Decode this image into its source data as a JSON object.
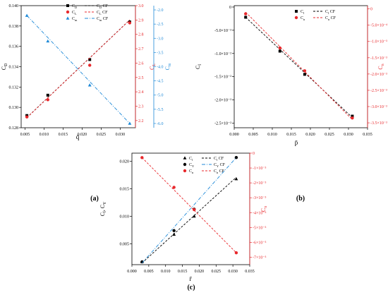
{
  "colors": {
    "black": "#000000",
    "red": "#e8282c",
    "blue": "#1f8ad8"
  },
  "chart_data": [
    {
      "panel": "(a)",
      "type": "scatter",
      "xlabel": "q̄",
      "xlim": [
        0.004,
        0.034
      ],
      "xticks": [
        0.005,
        0.01,
        0.015,
        0.02,
        0.025,
        0.03
      ],
      "xtick_labels": [
        "0.005",
        "0.010",
        "0.015",
        "0.020",
        "0.025",
        "0.030"
      ],
      "axes": [
        {
          "side": "left",
          "label": "C",
          "label_sub": "D",
          "color": "#000000",
          "ylim": [
            0.128,
            0.14
          ],
          "ticks": [
            0.128,
            0.13,
            0.132,
            0.134,
            0.136,
            0.138,
            0.14
          ],
          "tick_labels": [
            "0.128",
            "0.130",
            "0.132",
            "0.134",
            "0.136",
            "0.138",
            "0.140"
          ]
        },
        {
          "side": "right-inner",
          "label": "C",
          "label_sub": "L",
          "color": "#e8282c",
          "ylim": [
            2.15,
            3.0
          ],
          "ticks": [
            2.2,
            2.3,
            2.4,
            2.5,
            2.6,
            2.7,
            2.8,
            2.9,
            3.0
          ],
          "tick_labels": [
            "2.2",
            "2.3",
            "2.4",
            "2.5",
            "2.6",
            "2.7",
            "2.8",
            "2.9",
            "3.0"
          ]
        },
        {
          "side": "right-outer",
          "label": "C",
          "label_sub": "m",
          "color": "#1f8ad8",
          "ylim": [
            -6.15,
            -1.85
          ],
          "ticks": [
            -2.0,
            -2.5,
            -3.0,
            -3.5,
            -4.0,
            -4.5,
            -5.0,
            -5.5,
            -6.0
          ],
          "tick_labels": [
            "-2.0",
            "-2.5",
            "-3.0",
            "-3.5",
            "-4.0",
            "-4.5",
            "-5.0",
            "-5.5",
            "-6.0"
          ]
        }
      ],
      "series": [
        {
          "name": "C",
          "sub": "D",
          "axis": 0,
          "marker": "square",
          "color": "#000000",
          "x": [
            0.0055,
            0.011,
            0.022,
            0.0325
          ],
          "y": [
            0.1292,
            0.1312,
            0.1347,
            0.1384
          ]
        },
        {
          "name": "C",
          "sub": "D",
          "suffix": " CF",
          "axis": 0,
          "fit": "line",
          "color": "#000000",
          "x": [
            0.0055,
            0.0325
          ],
          "y": [
            0.129,
            0.1386
          ]
        },
        {
          "name": "C",
          "sub": "L",
          "axis": 1,
          "marker": "circle",
          "color": "#e8282c",
          "x": [
            0.0055,
            0.011,
            0.022,
            0.0325
          ],
          "y": [
            2.225,
            2.345,
            2.585,
            2.88
          ]
        },
        {
          "name": "C",
          "sub": "L",
          "suffix": " CF",
          "axis": 1,
          "fit": "line",
          "color": "#e8282c",
          "x": [
            0.0055,
            0.0325
          ],
          "y": [
            2.22,
            2.9
          ]
        },
        {
          "name": "C",
          "sub": "m",
          "axis": 2,
          "marker": "triangle",
          "color": "#1f8ad8",
          "x": [
            0.0055,
            0.011,
            0.022,
            0.0325
          ],
          "y": [
            -2.2,
            -3.1,
            -4.65,
            -6.0
          ]
        },
        {
          "name": "C",
          "sub": "m",
          "suffix": " CF",
          "axis": 2,
          "fit": "line",
          "color": "#1f8ad8",
          "x": [
            0.0055,
            0.0325
          ],
          "y": [
            -2.2,
            -6.0
          ]
        }
      ]
    },
    {
      "panel": "(b)",
      "type": "scatter",
      "xlabel": "p̄",
      "xlim": [
        0.0,
        0.035
      ],
      "xticks": [
        0.0,
        0.005,
        0.01,
        0.015,
        0.02,
        0.025,
        0.03,
        0.035
      ],
      "xtick_labels": [
        "0.000",
        "0.005",
        "0.010",
        "0.015",
        "0.020",
        "0.025",
        "0.030",
        "0.035"
      ],
      "axes": [
        {
          "side": "left",
          "label": "C",
          "label_sub": "l",
          "color": "#000000",
          "ylim": [
            -0.026,
            0.0003
          ],
          "ticks": [
            0.0,
            -0.005,
            -0.01,
            -0.015,
            -0.02,
            -0.025
          ],
          "tick_labels": [
            "0",
            "-5.0×10⁻³",
            "-1.0×10⁻²",
            "-1.5×10⁻²",
            "-2.0×10⁻²",
            "-2.5×10⁻²"
          ]
        },
        {
          "side": "right-inner",
          "label": "C",
          "label_sub": "n",
          "color": "#e8282c",
          "ylim": [
            -0.00365,
            0.0001
          ],
          "ticks": [
            0.0,
            -0.0005,
            -0.001,
            -0.0015,
            -0.002,
            -0.0025,
            -0.003,
            -0.0035
          ],
          "tick_labels": [
            "0",
            "-5.0×10⁻⁴",
            "-1.0×10⁻³",
            "-1.5×10⁻³",
            "-2.0×10⁻³",
            "-2.5×10⁻³",
            "-3.0×10⁻³",
            "-3.5×10⁻³"
          ]
        }
      ],
      "series": [
        {
          "name": "C",
          "sub": "l",
          "axis": 0,
          "marker": "square",
          "color": "#000000",
          "x": [
            0.003,
            0.012,
            0.0185,
            0.031
          ],
          "y": [
            -0.0022,
            -0.0095,
            -0.0145,
            -0.0235
          ]
        },
        {
          "name": "C",
          "sub": "l",
          "suffix": " CF",
          "axis": 0,
          "fit": "line",
          "color": "#000000",
          "x": [
            0.003,
            0.031
          ],
          "y": [
            -0.0022,
            -0.0238
          ]
        },
        {
          "name": "C",
          "sub": "n",
          "axis": 1,
          "marker": "circle",
          "color": "#e8282c",
          "x": [
            0.003,
            0.012,
            0.0185,
            0.031
          ],
          "y": [
            -0.00015,
            -0.0012,
            -0.0019,
            -0.00335
          ]
        },
        {
          "name": "C",
          "sub": "n",
          "suffix": " CF",
          "axis": 1,
          "fit": "line",
          "color": "#e8282c",
          "x": [
            0.003,
            0.031
          ],
          "y": [
            -0.0001,
            -0.0034
          ]
        }
      ]
    },
    {
      "panel": "(c)",
      "type": "scatter",
      "xlabel": "r̄",
      "xlim": [
        0.0,
        0.035
      ],
      "xticks": [
        0.0,
        0.005,
        0.01,
        0.015,
        0.02,
        0.025,
        0.03,
        0.035
      ],
      "xtick_labels": [
        "0.000",
        "0.005",
        "0.010",
        "0.015",
        "0.020",
        "0.025",
        "0.030",
        "0.035"
      ],
      "axes": [
        {
          "side": "left",
          "label": "C",
          "label_sub": "l",
          "label_tail": ", C",
          "label_sub2": "Y",
          "color": "#000000",
          "ylim": [
            0.0012,
            0.0215
          ],
          "ticks": [
            0.005,
            0.01,
            0.015,
            0.02
          ],
          "tick_labels": [
            "0.005",
            "0.010",
            "0.015",
            "0.020"
          ]
        },
        {
          "side": "right-inner",
          "label": "C",
          "label_sub": "n",
          "color": "#e8282c",
          "ylim": [
            -0.0075,
            0.0
          ],
          "ticks": [
            0.0,
            -0.001,
            -0.002,
            -0.003,
            -0.004,
            -0.005,
            -0.006,
            -0.007
          ],
          "tick_labels": [
            "0",
            "-1×10⁻³",
            "-2×10⁻³",
            "-3×10⁻³",
            "-4×10⁻³",
            "-5×10⁻³",
            "-6×10⁻³",
            "-7×10⁻³"
          ]
        }
      ],
      "series": [
        {
          "name": "C",
          "sub": "l",
          "axis": 0,
          "marker": "triangle",
          "color": "#000000",
          "x": [
            0.003,
            0.0125,
            0.0185,
            0.031
          ],
          "y": [
            0.0017,
            0.0067,
            0.01,
            0.0168
          ]
        },
        {
          "name": "C",
          "sub": "l",
          "suffix": " CF",
          "axis": 0,
          "fit": "line",
          "color": "#000000",
          "x": [
            0.003,
            0.031
          ],
          "y": [
            0.0015,
            0.0171
          ]
        },
        {
          "name": "C",
          "sub": "Y",
          "axis": 0,
          "marker": "circle",
          "color": "#000000",
          "x": [
            0.003,
            0.0125,
            0.0185,
            0.031
          ],
          "y": [
            0.0017,
            0.0074,
            0.0113,
            0.0207
          ]
        },
        {
          "name": "C",
          "sub": "Y",
          "suffix": " CF",
          "axis": 0,
          "fit": "line",
          "color": "#1f8ad8",
          "x": [
            0.003,
            0.031
          ],
          "y": [
            0.0015,
            0.0207
          ]
        },
        {
          "name": "C",
          "sub": "n",
          "axis": 1,
          "marker": "circle",
          "color": "#e8282c",
          "x": [
            0.003,
            0.0125,
            0.0185,
            0.031
          ],
          "y": [
            -0.0003,
            -0.0023,
            -0.0038,
            -0.0067
          ]
        },
        {
          "name": "C",
          "sub": "n",
          "suffix": " CF",
          "axis": 1,
          "fit": "line",
          "color": "#e8282c",
          "x": [
            0.003,
            0.031
          ],
          "y": [
            -0.0003,
            -0.0067
          ]
        }
      ]
    }
  ]
}
